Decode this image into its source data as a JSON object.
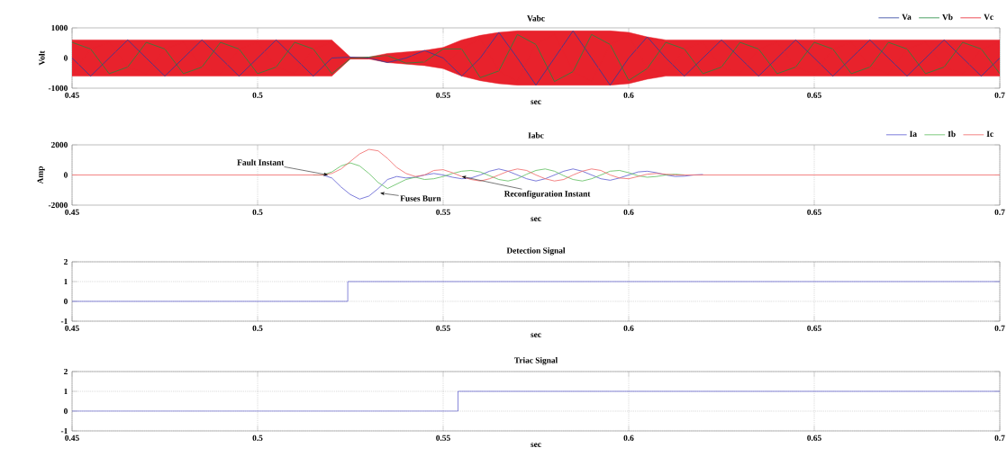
{
  "chart_data": [
    {
      "type": "line",
      "title": "Vabc",
      "xlabel": "sec",
      "ylabel": "Volt",
      "xlim": [
        0.45,
        0.7
      ],
      "ylim": [
        -1000,
        1000
      ],
      "xticks": [
        0.45,
        0.5,
        0.55,
        0.6,
        0.65,
        0.7
      ],
      "yticks": [
        -1000,
        0,
        1000
      ],
      "grid": "x",
      "legend": "top right",
      "x": [
        0.45,
        0.455,
        0.46,
        0.465,
        0.47,
        0.475,
        0.48,
        0.485,
        0.49,
        0.495,
        0.5,
        0.505,
        0.51,
        0.515,
        0.52,
        0.525,
        0.53,
        0.535,
        0.54,
        0.545,
        0.55,
        0.555,
        0.56,
        0.565,
        0.57,
        0.575,
        0.58,
        0.585,
        0.59,
        0.595,
        0.6,
        0.605,
        0.61,
        0.615,
        0.62,
        0.625,
        0.63,
        0.635,
        0.64,
        0.645,
        0.65,
        0.655,
        0.66,
        0.665,
        0.67,
        0.675,
        0.68,
        0.685,
        0.69,
        0.695,
        0.7
      ],
      "series": [
        {
          "name": "Va",
          "color": "#2a3c9e",
          "values": [
            0,
            -600,
            0,
            600,
            0,
            -600,
            0,
            600,
            0,
            -600,
            0,
            600,
            0,
            -600,
            0,
            30,
            0,
            -150,
            0,
            250,
            0,
            -600,
            0,
            850,
            0,
            -900,
            0,
            900,
            0,
            -900,
            0,
            700,
            0,
            -600,
            0,
            600,
            0,
            -600,
            0,
            600,
            0,
            -600,
            0,
            600,
            0,
            -600,
            0,
            600,
            0,
            -600,
            0
          ]
        },
        {
          "name": "Vb",
          "color": "#1f8a3c",
          "values": [
            520,
            300,
            -520,
            -300,
            520,
            300,
            -520,
            -300,
            520,
            300,
            -520,
            -300,
            520,
            300,
            -520,
            -20,
            30,
            80,
            -170,
            -130,
            300,
            300,
            -650,
            -430,
            780,
            450,
            -780,
            -450,
            780,
            450,
            -740,
            -350,
            520,
            300,
            -520,
            -300,
            520,
            300,
            -520,
            -300,
            520,
            300,
            -520,
            -300,
            520,
            300,
            -520,
            -300,
            520,
            300,
            -520
          ]
        },
        {
          "name": "Vc",
          "color": "#e8222c",
          "values": [
            -520,
            300,
            520,
            -300,
            -520,
            300,
            520,
            -300,
            -520,
            300,
            520,
            -300,
            -520,
            300,
            520,
            -20,
            -30,
            80,
            170,
            -130,
            -300,
            300,
            650,
            -430,
            -780,
            450,
            780,
            -450,
            -780,
            450,
            740,
            -350,
            -520,
            300,
            520,
            -300,
            -520,
            300,
            520,
            -300,
            -520,
            300,
            520,
            -300,
            -520,
            300,
            520,
            -300,
            -520,
            300,
            520
          ],
          "upper": [
            600,
            600,
            600,
            600,
            600,
            600,
            600,
            600,
            600,
            600,
            600,
            600,
            600,
            600,
            600,
            30,
            30,
            150,
            200,
            250,
            350,
            600,
            750,
            850,
            900,
            900,
            900,
            900,
            900,
            900,
            850,
            700,
            600,
            600,
            600,
            600,
            600,
            600,
            600,
            600,
            600,
            600,
            600,
            600,
            600,
            600,
            600,
            600,
            600,
            600,
            600
          ],
          "lower": [
            -600,
            -600,
            -600,
            -600,
            -600,
            -600,
            -600,
            -600,
            -600,
            -600,
            -600,
            -600,
            -600,
            -600,
            -600,
            -30,
            -30,
            -150,
            -200,
            -250,
            -350,
            -600,
            -750,
            -850,
            -900,
            -900,
            -900,
            -900,
            -900,
            -900,
            -850,
            -700,
            -600,
            -600,
            -600,
            -600,
            -600,
            -600,
            -600,
            -600,
            -600,
            -600,
            -600,
            -600,
            -600,
            -600,
            -600,
            -600,
            -600,
            -600,
            -600
          ]
        }
      ]
    },
    {
      "type": "line",
      "title": "Iabc",
      "xlabel": "sec",
      "ylabel": "Amp",
      "xlim": [
        0.45,
        0.7
      ],
      "ylim": [
        -2000,
        2000
      ],
      "xticks": [
        0.45,
        0.5,
        0.55,
        0.6,
        0.65,
        0.7
      ],
      "yticks": [
        -2000,
        0,
        2000
      ],
      "grid": "x",
      "legend": "top right",
      "x": [
        0.45,
        0.5,
        0.515,
        0.5175,
        0.52,
        0.5225,
        0.525,
        0.5275,
        0.53,
        0.5325,
        0.535,
        0.5375,
        0.54,
        0.5425,
        0.545,
        0.5475,
        0.55,
        0.5525,
        0.555,
        0.5575,
        0.56,
        0.5625,
        0.565,
        0.5675,
        0.57,
        0.5725,
        0.575,
        0.5775,
        0.58,
        0.5825,
        0.585,
        0.5875,
        0.59,
        0.5925,
        0.595,
        0.5975,
        0.6,
        0.6025,
        0.605,
        0.6075,
        0.61,
        0.6125,
        0.615,
        0.6175,
        0.62,
        0.6225,
        0.625,
        0.65,
        0.7
      ],
      "series": [
        {
          "name": "Ia",
          "color": "#5a5ad0",
          "values": [
            null,
            null,
            0,
            0,
            -200,
            -800,
            -1300,
            -1600,
            -1400,
            -900,
            -300,
            -100,
            -200,
            -150,
            0,
            100,
            0,
            -150,
            -250,
            -200,
            0,
            250,
            400,
            250,
            0,
            -250,
            -400,
            -250,
            0,
            250,
            400,
            250,
            0,
            -250,
            -350,
            -200,
            0,
            200,
            250,
            150,
            0,
            -100,
            -80,
            0,
            30,
            null,
            null,
            null,
            null
          ]
        },
        {
          "name": "Ib",
          "color": "#5cbc5c",
          "values": [
            null,
            null,
            0,
            0,
            200,
            600,
            800,
            600,
            100,
            -500,
            -900,
            -600,
            -300,
            -150,
            -300,
            -250,
            -100,
            100,
            250,
            300,
            200,
            -50,
            -300,
            -400,
            -250,
            50,
            300,
            400,
            250,
            -50,
            -300,
            -400,
            -250,
            0,
            250,
            300,
            150,
            -50,
            -150,
            -100,
            0,
            50,
            0,
            null,
            null,
            null,
            null,
            null,
            null
          ]
        },
        {
          "name": "Ic",
          "color": "#f06464",
          "values": [
            0,
            0,
            0,
            0,
            100,
            400,
            900,
            1400,
            1700,
            1600,
            1100,
            500,
            100,
            -100,
            0,
            300,
            350,
            150,
            -100,
            -300,
            -400,
            -250,
            0,
            250,
            400,
            300,
            0,
            -250,
            -400,
            -300,
            0,
            250,
            400,
            300,
            0,
            -200,
            -250,
            -100,
            50,
            100,
            50,
            0,
            0,
            0,
            0,
            0,
            0,
            0,
            0
          ]
        }
      ],
      "annotations": [
        {
          "text": "Fault Instant",
          "x": 0.519,
          "y": 0
        },
        {
          "text": "Fuses Burn",
          "x": 0.533,
          "y": -1200
        },
        {
          "text": "Reconfiguration Instant",
          "x": 0.555,
          "y": -100
        }
      ]
    },
    {
      "type": "step",
      "title": "Detection Signal",
      "xlabel": "sec",
      "xlim": [
        0.45,
        0.7
      ],
      "ylim": [
        -1,
        2
      ],
      "xticks": [
        0.45,
        0.5,
        0.55,
        0.6,
        0.65,
        0.7
      ],
      "yticks": [
        -1,
        0,
        1,
        2
      ],
      "grid": true,
      "x": [
        0.45,
        0.5243,
        0.7
      ],
      "series": [
        {
          "color": "#6a6ad0",
          "values": [
            0,
            1,
            1
          ]
        }
      ]
    },
    {
      "type": "step",
      "title": "Triac Signal",
      "xlabel": "sec",
      "xlim": [
        0.45,
        0.7
      ],
      "ylim": [
        -1,
        2
      ],
      "xticks": [
        0.45,
        0.5,
        0.55,
        0.6,
        0.65,
        0.7
      ],
      "yticks": [
        -1,
        0,
        1,
        2
      ],
      "grid": true,
      "x": [
        0.45,
        0.554,
        0.7
      ],
      "series": [
        {
          "color": "#6a6ad0",
          "values": [
            0,
            1,
            1
          ]
        }
      ]
    }
  ]
}
